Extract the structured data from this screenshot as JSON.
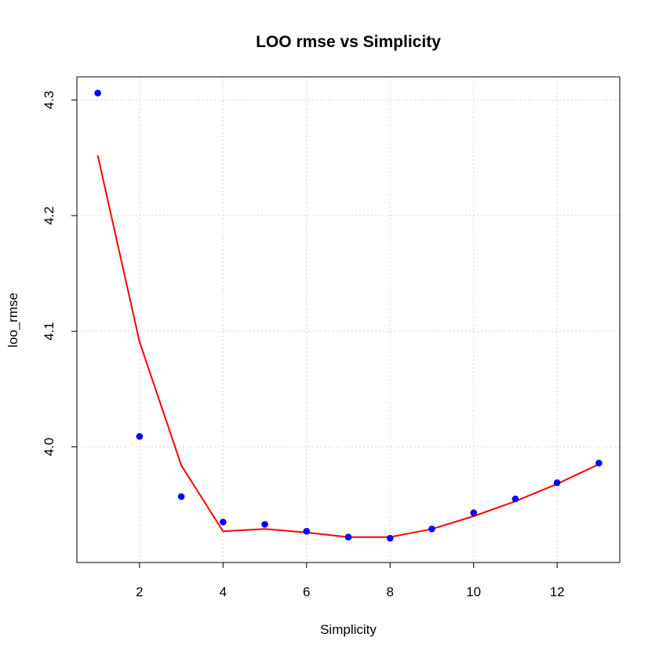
{
  "chart_data": {
    "type": "scatter",
    "title": "LOO rmse vs Simplicity",
    "xlabel": "Simplicity",
    "ylabel": "loo_rmse",
    "xlim": [
      0.5,
      13.5
    ],
    "ylim": [
      3.9,
      4.32
    ],
    "xticks": [
      2,
      4,
      6,
      8,
      10,
      12
    ],
    "yticks": [
      4.0,
      4.1,
      4.2,
      4.3
    ],
    "ytick_labels": [
      "4.0",
      "4.1",
      "4.2",
      "4.3"
    ],
    "grid": true,
    "series": [
      {
        "kind": "points",
        "color": "#0000ff",
        "x": [
          1,
          2,
          3,
          4,
          5,
          6,
          7,
          8,
          9,
          10,
          11,
          12,
          13
        ],
        "y": [
          4.306,
          4.009,
          3.957,
          3.935,
          3.933,
          3.927,
          3.922,
          3.921,
          3.929,
          3.943,
          3.955,
          3.969,
          3.986
        ]
      },
      {
        "kind": "line",
        "color": "#ff0000",
        "x": [
          1,
          2,
          3,
          4,
          5,
          6,
          7,
          8,
          9,
          10,
          11,
          12,
          13
        ],
        "y": [
          4.252,
          4.091,
          3.984,
          3.927,
          3.929,
          3.926,
          3.922,
          3.922,
          3.929,
          3.94,
          3.953,
          3.968,
          3.985
        ]
      }
    ]
  }
}
